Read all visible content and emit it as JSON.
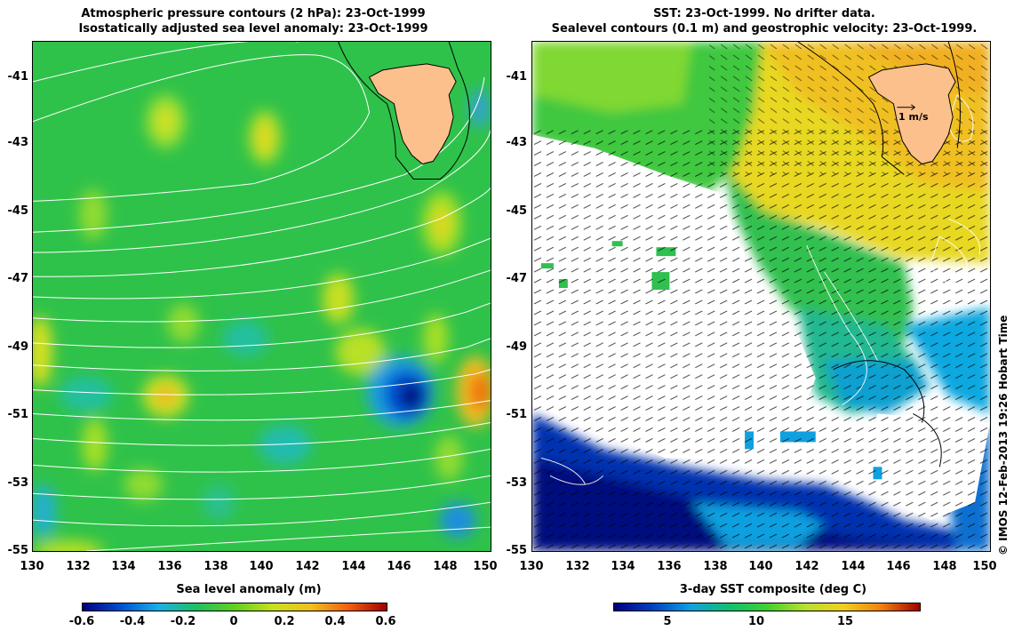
{
  "left_panel": {
    "title_line1": "Atmospheric pressure contours (2 hPa): 23-Oct-1999",
    "title_line2": "Isostatically adjusted sea level anomaly: 23-Oct-1999",
    "colorbar_label": "Sea level anomaly (m)",
    "colorbar_ticks": [
      "-0.6",
      "-0.4",
      "-0.2",
      "0",
      "0.2",
      "0.4",
      "0.6"
    ],
    "colormap": [
      "#00007f",
      "#0050d0",
      "#1ab0e8",
      "#20c060",
      "#60d020",
      "#c8e020",
      "#f0c020",
      "#f06010",
      "#9f0000"
    ]
  },
  "right_panel": {
    "title_line1": "SST: 23-Oct-1999. No drifter data.",
    "title_line2": "Sealevel contours (0.1 m) and geostrophic velocity: 23-Oct-1999.",
    "colorbar_label": "3-day SST composite (deg C)",
    "colorbar_ticks": [
      "5",
      "10",
      "15"
    ],
    "velocity_scale_label": "1 m/s",
    "colormap": [
      "#00007f",
      "#0040c0",
      "#10a0e0",
      "#10c070",
      "#40d030",
      "#b8e030",
      "#f0d020",
      "#f08010",
      "#a00000"
    ]
  },
  "axes": {
    "y_ticks": [
      "-41",
      "-43",
      "-45",
      "-47",
      "-49",
      "-51",
      "-53",
      "-55"
    ],
    "x_ticks": [
      "130",
      "132",
      "134",
      "136",
      "138",
      "140",
      "142",
      "144",
      "146",
      "148",
      "150"
    ]
  },
  "credit": "© IMOS 12-Feb-2013 19:26 Hobart Time",
  "colors": {
    "ocean_green": "#2fc24a",
    "land": "#fbc08c",
    "no_data": "#ffffff"
  }
}
